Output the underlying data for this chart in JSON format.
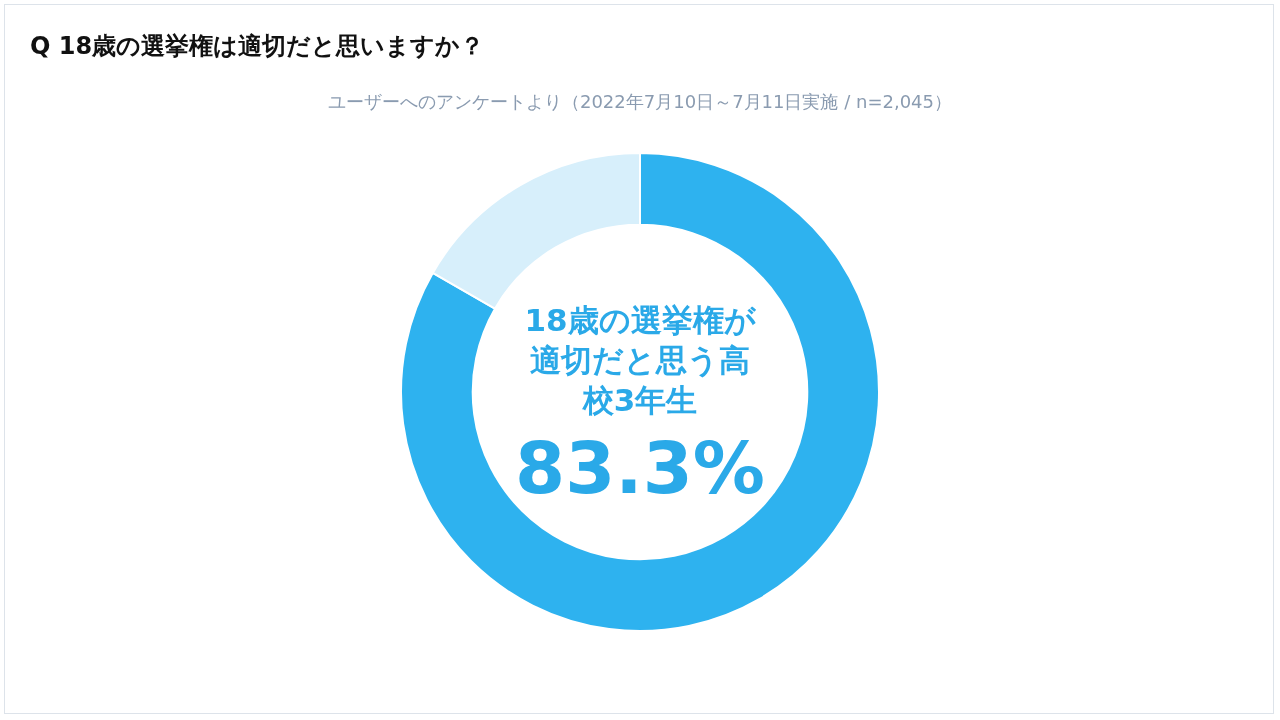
{
  "chart_data": {
    "type": "donut",
    "title": "Q 18歳の選挙権は適切だと思いますか？",
    "subtitle": "ユーザーへのアンケートより（2022年7月10日～7月11日実施 / n=2,045）",
    "categories": [
      "18歳の選挙権が適切だと思う高校3年生",
      null
    ],
    "values": [
      83.3,
      16.7
    ],
    "colors": [
      "#2eb2ef",
      "#d7effb"
    ],
    "value_labels": [
      "83.3%",
      null
    ],
    "legend": false
  }
}
